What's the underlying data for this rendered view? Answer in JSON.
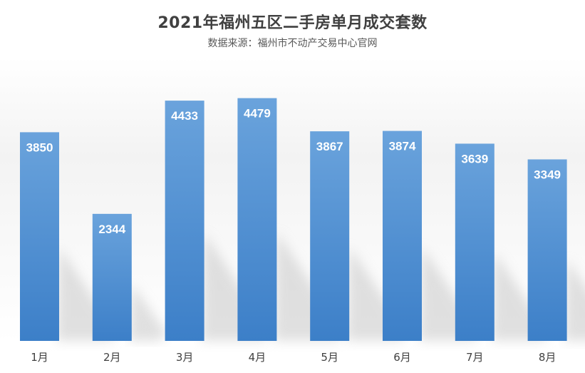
{
  "chart_data": {
    "type": "bar",
    "title": "2021年福州五区二手房单月成交套数",
    "subtitle": "数据来源：福州市不动产交易中心官网",
    "categories": [
      "1月",
      "2月",
      "3月",
      "4月",
      "5月",
      "6月",
      "7月",
      "8月"
    ],
    "values": [
      3850,
      2344,
      4433,
      4479,
      3867,
      3874,
      3639,
      3349
    ],
    "ylim": [
      0,
      5500
    ],
    "grid": false,
    "legend": "none",
    "bar_color_top": "#6aa3dc",
    "bar_color_bottom": "#3c7fc8",
    "label_color": "#ffffff"
  }
}
